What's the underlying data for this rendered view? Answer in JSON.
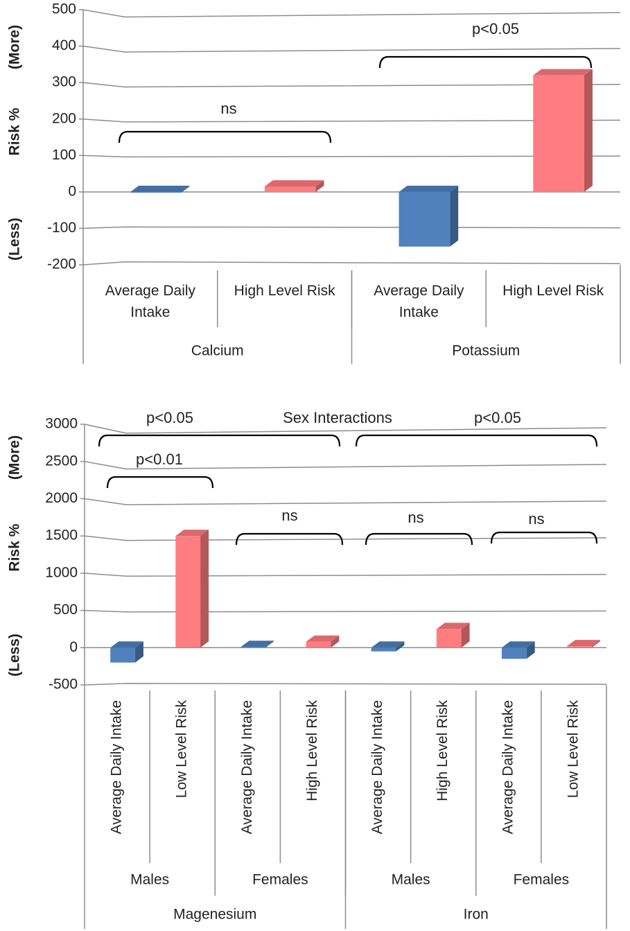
{
  "chart_data": [
    {
      "type": "bar3d",
      "ylabel": "Risk %",
      "ylabel_top": "(More)",
      "ylabel_bottom": "(Less)",
      "categories": [
        "Average Daily Intake",
        "High Level Risk",
        "Average Daily Intake",
        "High Level Risk"
      ],
      "groups": [
        "Calcium",
        "Potassium"
      ],
      "values": [
        -2,
        15,
        -150,
        320
      ],
      "colors": [
        "#4f81bd",
        "#ff7c80",
        "#4f81bd",
        "#ff7c80"
      ],
      "ylim": [
        -200,
        500
      ],
      "yticks": [
        -200,
        -100,
        0,
        100,
        200,
        300,
        400,
        500
      ],
      "grid": true,
      "annotations": [
        "ns",
        "p<0.05"
      ]
    },
    {
      "type": "bar3d",
      "ylabel": "Risk %",
      "ylabel_top": "(More)",
      "ylabel_bottom": "(Less)",
      "categories": [
        "Average Daily Intake",
        "Low Level Risk",
        "Average Daily Intake",
        "High Level Risk",
        "Average Daily Intake",
        "High Level Risk",
        "Average Daily Intake",
        "Low Level Risk"
      ],
      "subgroups": [
        "Males",
        "Females",
        "Males",
        "Females"
      ],
      "groups": [
        "Magenesium",
        "Iron"
      ],
      "values": [
        -200,
        1500,
        10,
        80,
        -50,
        250,
        -150,
        20
      ],
      "colors": [
        "#4f81bd",
        "#ff7c80",
        "#4f81bd",
        "#ff7c80",
        "#4f81bd",
        "#ff7c80",
        "#4f81bd",
        "#ff7c80"
      ],
      "ylim": [
        -500,
        3000
      ],
      "yticks": [
        -500,
        0,
        500,
        1000,
        1500,
        2000,
        2500,
        3000
      ],
      "grid": true,
      "annotations": [
        "p<0.05",
        "Sex Interactions",
        "p<0.05",
        "p<0.01",
        "ns",
        "ns",
        "ns"
      ]
    }
  ]
}
